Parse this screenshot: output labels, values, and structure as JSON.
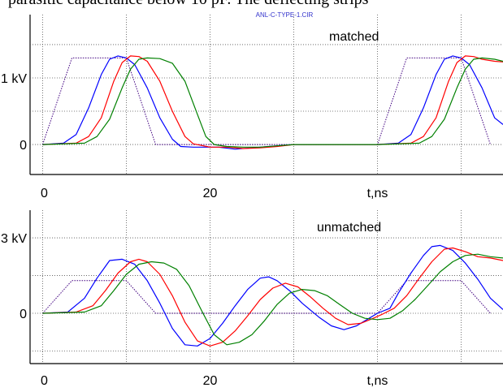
{
  "caption": "parasitic capacitance below 10 pF. The deflecting strips",
  "subtitle": "ANL-C-TYPE-1.CIR",
  "colors": {
    "blue": "#0000ff",
    "red": "#ff0000",
    "green": "#008000",
    "purple": "#400080",
    "grid": "#555555"
  },
  "chart_data": [
    {
      "type": "line",
      "annotation": "matched",
      "xlabel": "t,ns",
      "xlim": [
        -1.5,
        55
      ],
      "ylim": [
        -0.45,
        1.95
      ],
      "xticks": [
        {
          "value": 0,
          "label": "0"
        },
        {
          "value": 20,
          "label": "20"
        },
        {
          "value": 40,
          "label": "t,ns"
        }
      ],
      "yticks": [
        {
          "value": 1.0,
          "label": "1 kV"
        },
        {
          "value": 0,
          "label": "0"
        }
      ],
      "grid": true,
      "series": [
        {
          "color": "#400080",
          "style": "dotted",
          "points": [
            [
              0,
              0
            ],
            [
              3.5,
              1.3
            ],
            [
              10,
              1.3
            ],
            [
              13.5,
              0
            ],
            [
              40,
              0
            ],
            [
              43.5,
              1.3
            ],
            [
              50,
              1.3
            ],
            [
              53.5,
              0
            ]
          ]
        },
        {
          "color": "#0000ff",
          "points": [
            [
              0,
              0
            ],
            [
              2.5,
              0.02
            ],
            [
              4,
              0.15
            ],
            [
              5.5,
              0.55
            ],
            [
              7,
              1.05
            ],
            [
              8,
              1.28
            ],
            [
              9,
              1.33
            ],
            [
              10,
              1.3
            ],
            [
              11,
              1.2
            ],
            [
              12.5,
              0.85
            ],
            [
              14,
              0.4
            ],
            [
              15.5,
              0.08
            ],
            [
              16.5,
              -0.03
            ],
            [
              18,
              -0.04
            ],
            [
              21,
              -0.04
            ],
            [
              23,
              -0.07
            ],
            [
              25,
              -0.05
            ],
            [
              27,
              -0.03
            ],
            [
              30,
              0
            ],
            [
              40,
              0
            ],
            [
              42.5,
              0.02
            ],
            [
              44,
              0.15
            ],
            [
              45.5,
              0.55
            ],
            [
              47,
              1.05
            ],
            [
              48,
              1.28
            ],
            [
              49,
              1.33
            ],
            [
              50,
              1.3
            ],
            [
              51,
              1.2
            ],
            [
              52.5,
              0.85
            ],
            [
              54,
              0.4
            ],
            [
              55,
              0.3
            ]
          ]
        },
        {
          "color": "#ff0000",
          "points": [
            [
              0,
              0
            ],
            [
              4,
              0.02
            ],
            [
              5.5,
              0.12
            ],
            [
              7,
              0.4
            ],
            [
              8.5,
              0.95
            ],
            [
              9.5,
              1.23
            ],
            [
              10.5,
              1.33
            ],
            [
              11.5,
              1.32
            ],
            [
              12.5,
              1.25
            ],
            [
              14,
              0.95
            ],
            [
              15.5,
              0.5
            ],
            [
              17,
              0.12
            ],
            [
              18,
              0.01
            ],
            [
              20,
              -0.04
            ],
            [
              22,
              -0.04
            ],
            [
              24,
              -0.06
            ],
            [
              26,
              -0.05
            ],
            [
              28,
              -0.03
            ],
            [
              30,
              0
            ],
            [
              40,
              0
            ],
            [
              44,
              0.02
            ],
            [
              45.5,
              0.12
            ],
            [
              47,
              0.4
            ],
            [
              48.5,
              0.95
            ],
            [
              49.5,
              1.23
            ],
            [
              50.5,
              1.33
            ],
            [
              51.5,
              1.32
            ],
            [
              52.5,
              1.28
            ],
            [
              54,
              1.25
            ],
            [
              55,
              1.24
            ]
          ]
        },
        {
          "color": "#008000",
          "points": [
            [
              0,
              0
            ],
            [
              5,
              0.02
            ],
            [
              6.5,
              0.12
            ],
            [
              8,
              0.38
            ],
            [
              9.5,
              0.85
            ],
            [
              10.5,
              1.13
            ],
            [
              11.5,
              1.28
            ],
            [
              12.5,
              1.3
            ],
            [
              14,
              1.29
            ],
            [
              15.5,
              1.22
            ],
            [
              17,
              0.95
            ],
            [
              18.5,
              0.45
            ],
            [
              19.5,
              0.12
            ],
            [
              20.5,
              0
            ],
            [
              22,
              -0.03
            ],
            [
              24,
              -0.04
            ],
            [
              26,
              -0.04
            ],
            [
              28,
              -0.02
            ],
            [
              30,
              0
            ],
            [
              40,
              0
            ],
            [
              45,
              0.02
            ],
            [
              46.5,
              0.12
            ],
            [
              48,
              0.38
            ],
            [
              49.5,
              0.85
            ],
            [
              50.5,
              1.13
            ],
            [
              51.5,
              1.28
            ],
            [
              52.5,
              1.3
            ],
            [
              54,
              1.28
            ],
            [
              55,
              1.25
            ]
          ]
        }
      ]
    },
    {
      "type": "line",
      "annotation": "unmatched",
      "xlabel": "t,ns",
      "xlim": [
        -1.5,
        55
      ],
      "ylim": [
        -2.0,
        4.1
      ],
      "xticks": [
        {
          "value": 0,
          "label": "0"
        },
        {
          "value": 20,
          "label": "20"
        },
        {
          "value": 40,
          "label": "t,ns"
        }
      ],
      "yticks": [
        {
          "value": 3.0,
          "label": "3 kV"
        },
        {
          "value": 0,
          "label": "0"
        }
      ],
      "grid": true,
      "series": [
        {
          "color": "#400080",
          "style": "dotted",
          "points": [
            [
              0,
              0
            ],
            [
              3.5,
              1.3
            ],
            [
              10,
              1.3
            ],
            [
              13.5,
              0
            ],
            [
              40,
              0
            ],
            [
              43.5,
              1.3
            ],
            [
              50,
              1.3
            ],
            [
              53.5,
              0
            ]
          ]
        },
        {
          "color": "#0000ff",
          "points": [
            [
              0,
              0
            ],
            [
              3,
              0.05
            ],
            [
              5,
              0.6
            ],
            [
              6.5,
              1.4
            ],
            [
              8,
              2.1
            ],
            [
              9.5,
              2.15
            ],
            [
              11,
              1.95
            ],
            [
              12.5,
              1.3
            ],
            [
              14,
              0.4
            ],
            [
              15.5,
              -0.6
            ],
            [
              17,
              -1.25
            ],
            [
              18.5,
              -1.3
            ],
            [
              20,
              -1.0
            ],
            [
              21.5,
              -0.4
            ],
            [
              23,
              0.3
            ],
            [
              24.5,
              0.95
            ],
            [
              26,
              1.4
            ],
            [
              27,
              1.45
            ],
            [
              28,
              1.3
            ],
            [
              29.5,
              0.9
            ],
            [
              31,
              0.4
            ],
            [
              33,
              -0.15
            ],
            [
              34.5,
              -0.5
            ],
            [
              36,
              -0.65
            ],
            [
              37.5,
              -0.5
            ],
            [
              39,
              -0.2
            ],
            [
              40,
              0
            ],
            [
              41.5,
              0.2
            ],
            [
              42.5,
              0.8
            ],
            [
              44,
              1.6
            ],
            [
              45.5,
              2.3
            ],
            [
              46.5,
              2.65
            ],
            [
              47.5,
              2.7
            ],
            [
              49,
              2.5
            ],
            [
              50.5,
              2.0
            ],
            [
              52,
              1.35
            ],
            [
              53.5,
              0.6
            ],
            [
              55,
              0.15
            ]
          ]
        },
        {
          "color": "#ff0000",
          "points": [
            [
              0,
              0
            ],
            [
              4,
              0.05
            ],
            [
              6,
              0.3
            ],
            [
              7.5,
              0.9
            ],
            [
              9,
              1.6
            ],
            [
              10.5,
              2.05
            ],
            [
              11.5,
              2.15
            ],
            [
              12.5,
              2.05
            ],
            [
              14,
              1.55
            ],
            [
              15.5,
              0.7
            ],
            [
              17,
              -0.35
            ],
            [
              18.5,
              -1.1
            ],
            [
              20,
              -1.3
            ],
            [
              21.5,
              -1.15
            ],
            [
              23,
              -0.7
            ],
            [
              24.5,
              -0.1
            ],
            [
              26,
              0.55
            ],
            [
              27.5,
              1.0
            ],
            [
              29,
              1.2
            ],
            [
              30.5,
              1.05
            ],
            [
              32,
              0.65
            ],
            [
              33.5,
              0.2
            ],
            [
              35,
              -0.2
            ],
            [
              36.5,
              -0.45
            ],
            [
              38,
              -0.4
            ],
            [
              39.5,
              -0.2
            ],
            [
              40.5,
              -0.05
            ],
            [
              42,
              0.2
            ],
            [
              43.5,
              0.7
            ],
            [
              45,
              1.4
            ],
            [
              46.5,
              2.05
            ],
            [
              48,
              2.55
            ],
            [
              49,
              2.6
            ],
            [
              50.5,
              2.45
            ],
            [
              52,
              2.25
            ],
            [
              53.5,
              2.2
            ],
            [
              55,
              2.1
            ]
          ]
        },
        {
          "color": "#008000",
          "points": [
            [
              0,
              0
            ],
            [
              5,
              0.05
            ],
            [
              7,
              0.3
            ],
            [
              8.5,
              0.9
            ],
            [
              10,
              1.55
            ],
            [
              11.5,
              1.95
            ],
            [
              13,
              2.05
            ],
            [
              14.5,
              2.0
            ],
            [
              16,
              1.75
            ],
            [
              17.5,
              1.1
            ],
            [
              19,
              0.1
            ],
            [
              20.5,
              -0.85
            ],
            [
              22,
              -1.25
            ],
            [
              23.5,
              -1.15
            ],
            [
              25,
              -0.85
            ],
            [
              26.5,
              -0.3
            ],
            [
              28,
              0.35
            ],
            [
              29.5,
              0.8
            ],
            [
              31,
              0.95
            ],
            [
              32.5,
              0.9
            ],
            [
              34,
              0.7
            ],
            [
              35.5,
              0.35
            ],
            [
              37,
              0.0
            ],
            [
              38.5,
              -0.2
            ],
            [
              40,
              -0.25
            ],
            [
              41.5,
              -0.2
            ],
            [
              43,
              0.1
            ],
            [
              44.5,
              0.55
            ],
            [
              46,
              1.1
            ],
            [
              47.5,
              1.65
            ],
            [
              49,
              2.05
            ],
            [
              50.5,
              2.3
            ],
            [
              52,
              2.35
            ],
            [
              53.5,
              2.25
            ],
            [
              55,
              2.2
            ]
          ]
        }
      ]
    }
  ]
}
